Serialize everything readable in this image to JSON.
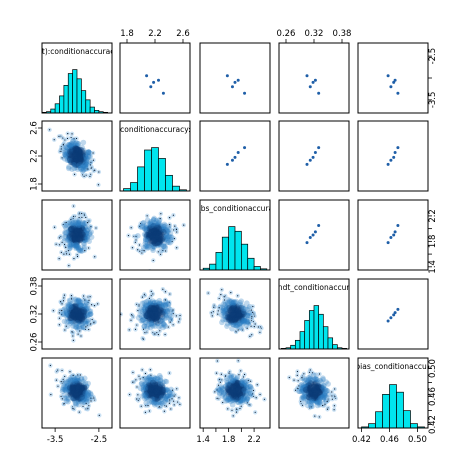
{
  "chart_data": {
    "type": "scatter",
    "layout": "pairs",
    "variables": [
      {
        "label": "sp_(Intercept):conditionaccuracy:frequency",
        "range": [
          -3.8,
          -2.2
        ]
      },
      {
        "label": "sp_(Intercept):conditionaccuracy:frequencyhigh",
        "range": [
          1.7,
          2.7
        ]
      },
      {
        "label": "sp_bs_conditionaccuracy",
        "range": [
          1.35,
          2.45
        ]
      },
      {
        "label": "sp_ndt_conditionaccuracy",
        "range": [
          0.245,
          0.395
        ]
      },
      {
        "label": "sp_bias_conditionaccuracy",
        "range": [
          0.415,
          0.515
        ]
      }
    ],
    "ticks": [
      {
        "values": [
          -3.5,
          -2.5
        ],
        "labels": [
          "-3.5",
          "-2.5"
        ]
      },
      {
        "values": [
          1.8,
          2.2,
          2.6
        ],
        "labels": [
          "1.8",
          "2.2",
          "2.6"
        ]
      },
      {
        "values": [
          1.4,
          1.6,
          1.8,
          2.0,
          2.2
        ],
        "labels": [
          "1.4",
          "",
          "1.8",
          "",
          "2.2"
        ]
      },
      {
        "values": [
          0.26,
          0.32,
          0.38
        ],
        "labels": [
          "0.26",
          "0.32",
          "0.38"
        ]
      },
      {
        "values": [
          0.42,
          0.46,
          0.5
        ],
        "labels": [
          "0.42",
          "0.46",
          "0.50"
        ]
      }
    ],
    "ticks_right": [
      {
        "values": [
          -3.5,
          -3.0,
          -2.5
        ],
        "labels": [
          "-3.5",
          "",
          "-2.5"
        ]
      },
      null,
      {
        "values": [
          1.4,
          1.6,
          1.8,
          2.0,
          2.2
        ],
        "labels": [
          "1.4",
          "",
          "1.8",
          "",
          "2.2"
        ]
      },
      null,
      {
        "values": [
          0.42,
          0.44,
          0.46,
          0.48,
          0.5
        ],
        "labels": [
          "0.42",
          "",
          "0.46",
          "",
          "0.50"
        ]
      }
    ],
    "histograms": [
      {
        "bin_edges": [
          -3.8,
          -3.7,
          -3.6,
          -3.5,
          -3.4,
          -3.3,
          -3.2,
          -3.1,
          -3.0,
          -2.9,
          -2.8,
          -2.7,
          -2.6,
          -2.5,
          -2.4,
          -2.3
        ],
        "counts": [
          1,
          2,
          6,
          14,
          26,
          42,
          60,
          66,
          52,
          34,
          20,
          9,
          4,
          2,
          1
        ]
      },
      {
        "bin_edges": [
          1.75,
          1.85,
          1.95,
          2.05,
          2.15,
          2.25,
          2.35,
          2.45,
          2.55,
          2.65
        ],
        "counts": [
          4,
          14,
          40,
          68,
          72,
          54,
          26,
          8,
          2
        ]
      },
      {
        "bin_edges": [
          1.4,
          1.5,
          1.6,
          1.7,
          1.8,
          1.9,
          2.0,
          2.1,
          2.2,
          2.3,
          2.4
        ],
        "counts": [
          3,
          10,
          30,
          56,
          74,
          66,
          44,
          20,
          6,
          2
        ]
      },
      {
        "bin_edges": [
          0.25,
          0.26,
          0.27,
          0.28,
          0.29,
          0.3,
          0.31,
          0.32,
          0.33,
          0.34,
          0.35,
          0.36,
          0.37,
          0.38,
          0.39
        ],
        "counts": [
          1,
          2,
          6,
          14,
          28,
          46,
          62,
          70,
          56,
          36,
          18,
          7,
          2,
          1
        ]
      },
      {
        "bin_edges": [
          0.42,
          0.43,
          0.44,
          0.45,
          0.46,
          0.47,
          0.48,
          0.49,
          0.5,
          0.51
        ],
        "counts": [
          2,
          8,
          30,
          62,
          80,
          66,
          32,
          8,
          2
        ]
      }
    ],
    "estimates": {
      "points": [
        [
          -3.1,
          2.18,
          1.9,
          0.318,
          0.466
        ],
        [
          -3.35,
          2.32,
          2.05,
          0.33,
          0.472
        ],
        [
          -2.95,
          2.08,
          1.78,
          0.305,
          0.458
        ],
        [
          -3.05,
          2.25,
          1.95,
          0.323,
          0.468
        ],
        [
          -3.2,
          2.14,
          1.86,
          0.312,
          0.462
        ]
      ],
      "color": "#1f5fa8"
    },
    "density_cloud": {
      "centers": [
        -3.0,
        2.2,
        1.9,
        0.32,
        0.468
      ],
      "spreads": [
        0.18,
        0.13,
        0.14,
        0.018,
        0.012
      ],
      "correlations": {
        "0-1": -0.55,
        "0-2": 0.05,
        "0-3": 0.0,
        "0-4": -0.3,
        "1-2": 0.1,
        "1-3": 0.05,
        "1-4": -0.3,
        "2-3": -0.45,
        "2-4": 0.0,
        "3-4": -0.25
      }
    },
    "colors": {
      "hist_fill": "#00e5ee",
      "hist_stroke": "#000000",
      "cloud_dark": "#0b3c78",
      "cloud_mid": "#2a7fc4",
      "cloud_light": "#9fc8ea",
      "outlier_dot": "#0a1a30"
    }
  }
}
